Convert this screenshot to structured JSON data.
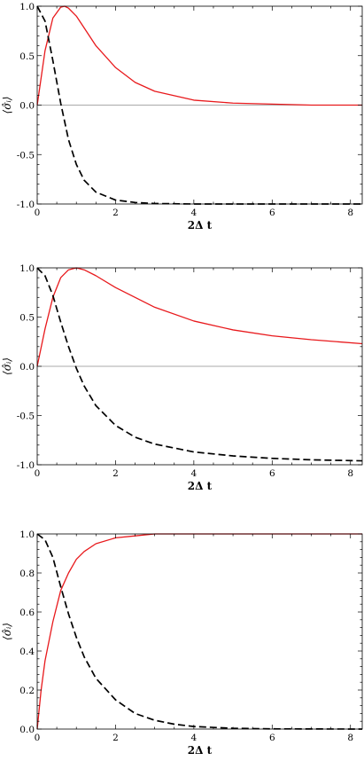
{
  "chart_data": [
    {
      "type": "line",
      "xlabel": "2Δ t",
      "ylabel": "⟨σ̂ᵢ⟩",
      "xlim": [
        0,
        8.3
      ],
      "ylim": [
        -1.0,
        1.0
      ],
      "xticks": [
        "0",
        "2",
        "4",
        "6",
        "8"
      ],
      "xtick_values": [
        0,
        2,
        4,
        6,
        8
      ],
      "yticks": [
        "-1.0",
        "-0.5",
        "0.0",
        "0.5",
        "1.0"
      ],
      "ytick_values": [
        -1.0,
        -0.5,
        0.0,
        0.5,
        1.0
      ],
      "zero_line": true,
      "series": [
        {
          "style": "solid",
          "color": "#e8191c",
          "x": [
            0,
            0.2,
            0.4,
            0.6,
            0.7,
            0.8,
            1.0,
            1.2,
            1.5,
            2.0,
            2.5,
            3.0,
            4.0,
            5.0,
            6.0,
            7.0,
            8.3
          ],
          "y": [
            0.0,
            0.55,
            0.88,
            0.99,
            1.0,
            0.98,
            0.9,
            0.78,
            0.6,
            0.38,
            0.23,
            0.14,
            0.05,
            0.02,
            0.01,
            0.0,
            0.0
          ]
        },
        {
          "style": "dashed",
          "color": "#000000",
          "x": [
            0,
            0.2,
            0.4,
            0.6,
            0.8,
            1.0,
            1.2,
            1.5,
            2.0,
            2.5,
            3.0,
            4.0,
            5.0,
            6.0,
            7.0,
            8.3
          ],
          "y": [
            1.0,
            0.85,
            0.45,
            0.02,
            -0.35,
            -0.6,
            -0.76,
            -0.88,
            -0.96,
            -0.985,
            -0.995,
            -1.0,
            -1.0,
            -1.0,
            -1.0,
            -1.0
          ]
        }
      ]
    },
    {
      "type": "line",
      "xlabel": "2Δ t",
      "ylabel": "⟨σ̂ᵢ⟩",
      "xlim": [
        0,
        8.3
      ],
      "ylim": [
        -1.0,
        1.0
      ],
      "xticks": [
        "0",
        "2",
        "4",
        "6",
        "8"
      ],
      "xtick_values": [
        0,
        2,
        4,
        6,
        8
      ],
      "yticks": [
        "-1.0",
        "-0.5",
        "0.0",
        "0.5",
        "1.0"
      ],
      "ytick_values": [
        -1.0,
        -0.5,
        0.0,
        0.5,
        1.0
      ],
      "zero_line": true,
      "series": [
        {
          "style": "solid",
          "color": "#e8191c",
          "x": [
            0,
            0.2,
            0.4,
            0.6,
            0.8,
            1.0,
            1.2,
            1.5,
            2.0,
            2.5,
            3.0,
            4.0,
            5.0,
            6.0,
            7.0,
            8.3
          ],
          "y": [
            0.0,
            0.38,
            0.7,
            0.9,
            0.98,
            1.0,
            0.98,
            0.92,
            0.8,
            0.7,
            0.6,
            0.46,
            0.37,
            0.31,
            0.27,
            0.23
          ]
        },
        {
          "style": "dashed",
          "color": "#000000",
          "x": [
            0,
            0.2,
            0.4,
            0.6,
            0.8,
            1.0,
            1.2,
            1.5,
            2.0,
            2.5,
            3.0,
            4.0,
            5.0,
            6.0,
            7.0,
            8.3
          ],
          "y": [
            1.0,
            0.92,
            0.72,
            0.45,
            0.2,
            -0.02,
            -0.2,
            -0.4,
            -0.6,
            -0.72,
            -0.79,
            -0.87,
            -0.91,
            -0.935,
            -0.95,
            -0.96
          ]
        }
      ]
    },
    {
      "type": "line",
      "xlabel": "2Δ t",
      "ylabel": "⟨σ̂ᵢ⟩",
      "xlim": [
        0,
        8.3
      ],
      "ylim": [
        0.0,
        1.0
      ],
      "xticks": [
        "0",
        "2",
        "4",
        "6",
        "8"
      ],
      "xtick_values": [
        0,
        2,
        4,
        6,
        8
      ],
      "yticks": [
        "0.0",
        "0.2",
        "0.4",
        "0.6",
        "0.8",
        "1.0"
      ],
      "ytick_values": [
        0.0,
        0.2,
        0.4,
        0.6,
        0.8,
        1.0
      ],
      "zero_line": false,
      "series": [
        {
          "style": "solid",
          "color": "#e8191c",
          "x": [
            0,
            0.1,
            0.2,
            0.4,
            0.6,
            0.8,
            1.0,
            1.2,
            1.5,
            2.0,
            2.5,
            3.0,
            4.0,
            5.0,
            6.0,
            8.3
          ],
          "y": [
            0.0,
            0.2,
            0.35,
            0.55,
            0.71,
            0.8,
            0.87,
            0.91,
            0.95,
            0.98,
            0.99,
            1.0,
            1.0,
            1.0,
            1.0,
            1.0
          ]
        },
        {
          "style": "dashed",
          "color": "#000000",
          "x": [
            0,
            0.2,
            0.4,
            0.6,
            0.8,
            1.0,
            1.2,
            1.5,
            2.0,
            2.5,
            3.0,
            3.5,
            4.0,
            5.0,
            6.0,
            8.3
          ],
          "y": [
            1.0,
            0.97,
            0.88,
            0.73,
            0.59,
            0.47,
            0.37,
            0.26,
            0.15,
            0.08,
            0.045,
            0.025,
            0.013,
            0.004,
            0.001,
            0.0
          ]
        }
      ]
    }
  ]
}
